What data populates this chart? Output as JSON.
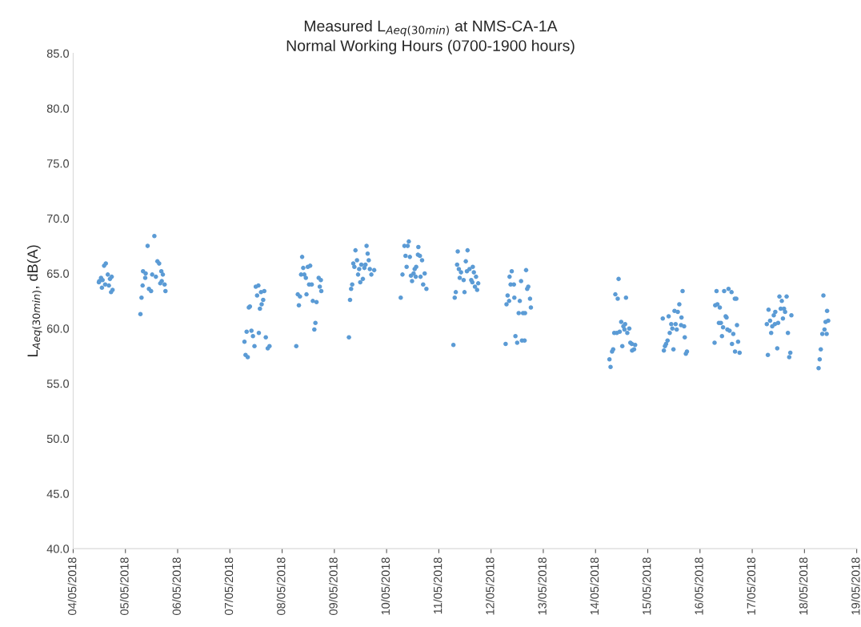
{
  "chart_data": {
    "type": "scatter",
    "title": "Measured L$_{Aeq(30min)}$ at NMS-CA-1A",
    "subtitle": "Normal Working Hours (0700-1900 hours)",
    "ylabel": "L$_{Aeq(30min)}$, dB(A)",
    "series": [
      {
        "color": "#5b9bd5",
        "x": [
          "2018-05-04T15:00",
          "2018-05-04T14:12",
          "2018-05-04T15:54",
          "2018-05-04T17:42",
          "2018-05-04T16:54",
          "2018-05-04T12:48",
          "2018-05-04T12:00",
          "2018-05-04T11:48",
          "2018-05-04T13:30",
          "2018-05-04T14:42",
          "2018-05-04T16:24",
          "2018-05-04T13:12",
          "2018-05-04T18:06",
          "2018-05-04T17:24",
          "2018-05-05T13:18",
          "2018-05-05T10:12",
          "2018-05-05T14:42",
          "2018-05-05T15:30",
          "2018-05-05T08:06",
          "2018-05-05T09:18",
          "2018-05-05T16:30",
          "2018-05-05T17:12",
          "2018-05-05T12:18",
          "2018-05-05T14:00",
          "2018-05-05T09:06",
          "2018-05-05T16:42",
          "2018-05-05T16:00",
          "2018-05-05T18:00",
          "2018-05-05T07:54",
          "2018-05-05T10:48",
          "2018-05-05T11:48",
          "2018-05-05T18:24",
          "2018-05-05T07:24",
          "2018-05-05T06:54",
          "2018-05-07T11:54",
          "2018-05-07T13:06",
          "2018-05-07T14:18",
          "2018-05-07T15:48",
          "2018-05-07T12:30",
          "2018-05-07T15:18",
          "2018-05-07T09:12",
          "2018-05-07T08:42",
          "2018-05-07T14:36",
          "2018-05-07T13:48",
          "2018-05-07T07:42",
          "2018-05-07T09:54",
          "2018-05-07T10:36",
          "2018-05-07T13:18",
          "2018-05-07T16:30",
          "2018-05-07T06:42",
          "2018-05-07T11:18",
          "2018-05-07T17:24",
          "2018-05-07T18:12",
          "2018-05-07T07:12",
          "2018-05-07T08:12",
          "2018-05-08T09:12",
          "2018-05-08T09:42",
          "2018-05-08T11:48",
          "2018-05-08T12:54",
          "2018-05-08T08:42",
          "2018-05-08T10:12",
          "2018-05-08T10:54",
          "2018-05-08T16:48",
          "2018-05-08T17:48",
          "2018-05-08T12:24",
          "2018-05-08T13:36",
          "2018-05-08T17:18",
          "2018-05-08T18:00",
          "2018-05-08T07:12",
          "2018-05-08T08:12",
          "2018-05-08T11:12",
          "2018-05-08T14:06",
          "2018-05-08T15:48",
          "2018-05-08T07:42",
          "2018-05-08T15:18",
          "2018-05-08T14:48",
          "2018-05-08T06:30",
          "2018-05-09T14:48",
          "2018-05-09T09:42",
          "2018-05-09T15:18",
          "2018-05-09T15:48",
          "2018-05-09T10:24",
          "2018-05-09T08:42",
          "2018-05-09T09:12",
          "2018-05-09T12:24",
          "2018-05-09T14:18",
          "2018-05-09T13:48",
          "2018-05-09T11:24",
          "2018-05-09T16:18",
          "2018-05-09T18:18",
          "2018-05-09T17:00",
          "2018-05-09T10:54",
          "2018-05-09T13:06",
          "2018-05-09T11:54",
          "2018-05-09T08:12",
          "2018-05-09T07:42",
          "2018-05-09T07:12",
          "2018-05-09T06:42",
          "2018-05-10T10:12",
          "2018-05-10T08:12",
          "2018-05-10T09:42",
          "2018-05-10T14:36",
          "2018-05-10T08:42",
          "2018-05-10T10:42",
          "2018-05-10T14:24",
          "2018-05-10T15:18",
          "2018-05-10T16:18",
          "2018-05-10T09:12",
          "2018-05-10T12:54",
          "2018-05-10T13:36",
          "2018-05-10T07:18",
          "2018-05-10T17:30",
          "2018-05-10T11:12",
          "2018-05-10T12:24",
          "2018-05-10T13:24",
          "2018-05-10T15:36",
          "2018-05-10T11:42",
          "2018-05-10T16:48",
          "2018-05-10T18:18",
          "2018-05-10T06:30",
          "2018-05-11T08:42",
          "2018-05-11T13:12",
          "2018-05-11T12:24",
          "2018-05-11T08:24",
          "2018-05-11T15:36",
          "2018-05-11T09:12",
          "2018-05-11T10:12",
          "2018-05-11T12:54",
          "2018-05-11T14:06",
          "2018-05-11T16:06",
          "2018-05-11T17:06",
          "2018-05-11T09:36",
          "2018-05-11T11:24",
          "2018-05-11T14:54",
          "2018-05-11T15:24",
          "2018-05-11T18:06",
          "2018-05-11T16:36",
          "2018-05-11T17:36",
          "2018-05-11T07:48",
          "2018-05-11T07:18",
          "2018-05-11T11:48",
          "2018-05-11T06:42",
          "2018-05-12T09:30",
          "2018-05-12T16:06",
          "2018-05-12T08:30",
          "2018-05-12T13:48",
          "2018-05-12T09:00",
          "2018-05-12T10:30",
          "2018-05-12T17:06",
          "2018-05-12T16:36",
          "2018-05-12T07:36",
          "2018-05-12T08:18",
          "2018-05-12T10:42",
          "2018-05-12T13:12",
          "2018-05-12T17:54",
          "2018-05-12T07:06",
          "2018-05-12T18:18",
          "2018-05-12T12:42",
          "2018-05-12T14:42",
          "2018-05-12T15:36",
          "2018-05-12T11:12",
          "2018-05-12T12:00",
          "2018-05-12T14:12",
          "2018-05-12T15:24",
          "2018-05-12T06:42",
          "2018-05-14T10:36",
          "2018-05-14T09:06",
          "2018-05-14T10:12",
          "2018-05-14T14:00",
          "2018-05-14T11:48",
          "2018-05-14T13:36",
          "2018-05-14T12:48",
          "2018-05-14T15:30",
          "2018-05-14T13:18",
          "2018-05-14T14:36",
          "2018-05-14T08:36",
          "2018-05-14T09:48",
          "2018-05-14T11:06",
          "2018-05-14T16:00",
          "2018-05-14T16:42",
          "2018-05-14T18:12",
          "2018-05-14T12:18",
          "2018-05-14T17:42",
          "2018-05-14T16:48",
          "2018-05-14T08:06",
          "2018-05-14T07:36",
          "2018-05-14T06:24",
          "2018-05-14T06:54",
          "2018-05-15T16:00",
          "2018-05-15T14:30",
          "2018-05-15T12:18",
          "2018-05-15T13:48",
          "2018-05-15T06:54",
          "2018-05-15T09:36",
          "2018-05-15T15:30",
          "2018-05-15T10:48",
          "2018-05-15T12:48",
          "2018-05-15T15:18",
          "2018-05-15T16:42",
          "2018-05-15T11:18",
          "2018-05-15T13:18",
          "2018-05-15T10:06",
          "2018-05-15T17:00",
          "2018-05-15T09:06",
          "2018-05-15T08:24",
          "2018-05-15T07:54",
          "2018-05-15T07:24",
          "2018-05-15T11:48",
          "2018-05-15T18:00",
          "2018-05-15T17:30",
          "2018-05-16T07:36",
          "2018-05-16T11:06",
          "2018-05-16T13:06",
          "2018-05-16T14:30",
          "2018-05-16T16:00",
          "2018-05-16T16:42",
          "2018-05-16T07:00",
          "2018-05-16T08:00",
          "2018-05-16T09:06",
          "2018-05-16T11:48",
          "2018-05-16T12:12",
          "2018-05-16T08:42",
          "2018-05-16T09:36",
          "2018-05-16T17:00",
          "2018-05-16T10:36",
          "2018-05-16T12:36",
          "2018-05-16T13:36",
          "2018-05-16T15:18",
          "2018-05-16T10:06",
          "2018-05-16T06:42",
          "2018-05-16T17:30",
          "2018-05-16T14:42",
          "2018-05-16T16:06",
          "2018-05-16T18:12",
          "2018-05-17T12:30",
          "2018-05-17T15:48",
          "2018-05-17T13:36",
          "2018-05-17T07:30",
          "2018-05-17T10:36",
          "2018-05-17T13:06",
          "2018-05-17T14:36",
          "2018-05-17T15:06",
          "2018-05-17T09:54",
          "2018-05-17T18:00",
          "2018-05-17T08:12",
          "2018-05-17T14:06",
          "2018-05-17T06:42",
          "2018-05-17T09:12",
          "2018-05-17T10:24",
          "2018-05-17T11:54",
          "2018-05-17T08:42",
          "2018-05-17T16:24",
          "2018-05-17T11:30",
          "2018-05-17T07:12",
          "2018-05-17T17:30",
          "2018-05-17T17:00",
          "2018-05-18T08:42",
          "2018-05-18T10:24",
          "2018-05-18T10:54",
          "2018-05-18T09:42",
          "2018-05-18T09:12",
          "2018-05-18T08:12",
          "2018-05-18T10:12",
          "2018-05-18T07:30",
          "2018-05-18T07:00",
          "2018-05-18T06:30"
        ],
        "values": [
          65.9,
          65.7,
          64.9,
          64.7,
          64.5,
          64.6,
          64.3,
          64.2,
          64.4,
          64.0,
          63.9,
          63.7,
          63.5,
          63.3,
          68.4,
          67.5,
          66.1,
          65.9,
          65.2,
          65.0,
          65.2,
          64.9,
          64.9,
          64.7,
          64.6,
          64.3,
          64.1,
          64.0,
          63.9,
          63.6,
          63.4,
          63.4,
          62.8,
          61.3,
          63.8,
          63.9,
          63.3,
          63.4,
          63.0,
          62.6,
          62.0,
          61.9,
          62.2,
          61.8,
          59.7,
          59.8,
          59.3,
          59.6,
          59.2,
          58.8,
          58.4,
          58.2,
          58.4,
          57.6,
          57.4,
          66.5,
          65.5,
          65.6,
          65.7,
          64.9,
          64.9,
          64.6,
          64.6,
          64.4,
          64.0,
          64.0,
          63.8,
          63.4,
          63.1,
          62.9,
          63.1,
          62.5,
          62.4,
          62.1,
          60.5,
          59.9,
          58.4,
          67.5,
          67.1,
          66.8,
          66.2,
          66.2,
          65.9,
          65.6,
          65.8,
          65.8,
          65.5,
          65.4,
          65.4,
          65.3,
          64.9,
          64.9,
          64.5,
          64.2,
          64.0,
          63.6,
          62.6,
          59.2,
          67.9,
          67.5,
          67.5,
          67.4,
          66.6,
          66.5,
          66.7,
          66.6,
          66.2,
          65.6,
          65.4,
          65.6,
          64.9,
          65.0,
          64.8,
          65.0,
          64.7,
          64.7,
          64.3,
          64.0,
          63.6,
          62.8,
          67.0,
          67.1,
          66.1,
          65.8,
          65.6,
          65.4,
          65.1,
          65.2,
          65.4,
          65.1,
          64.7,
          64.6,
          64.4,
          64.4,
          64.2,
          64.1,
          63.8,
          63.5,
          63.3,
          62.8,
          63.3,
          58.5,
          65.2,
          65.3,
          64.7,
          64.3,
          64.0,
          64.0,
          63.8,
          63.6,
          63.0,
          62.5,
          62.8,
          62.5,
          62.7,
          62.2,
          61.9,
          61.4,
          61.4,
          61.4,
          59.3,
          58.7,
          58.9,
          58.9,
          58.6,
          64.5,
          63.1,
          62.7,
          62.8,
          60.6,
          60.4,
          60.2,
          60.0,
          59.9,
          59.6,
          59.6,
          59.6,
          59.7,
          58.7,
          58.6,
          58.5,
          58.4,
          58.1,
          58.0,
          58.1,
          57.9,
          57.2,
          56.5,
          63.4,
          62.2,
          61.6,
          61.5,
          60.9,
          61.1,
          61.0,
          60.4,
          60.4,
          60.3,
          60.2,
          60.0,
          59.9,
          59.6,
          59.2,
          58.9,
          58.6,
          58.4,
          58.0,
          58.1,
          57.9,
          57.7,
          63.4,
          63.4,
          63.6,
          63.3,
          62.7,
          62.7,
          62.1,
          62.2,
          61.9,
          61.1,
          61.0,
          60.5,
          60.5,
          60.3,
          60.1,
          59.9,
          59.8,
          59.5,
          59.3,
          58.7,
          58.8,
          58.6,
          57.9,
          57.8,
          62.9,
          62.9,
          62.5,
          61.7,
          61.5,
          61.8,
          61.8,
          61.5,
          61.2,
          61.2,
          60.7,
          60.9,
          60.4,
          60.2,
          60.4,
          60.5,
          59.6,
          59.6,
          58.2,
          57.6,
          57.8,
          57.4,
          63.0,
          61.6,
          60.7,
          60.6,
          59.9,
          59.5,
          59.5,
          58.1,
          57.2,
          56.4
        ]
      }
    ],
    "xlim": [
      "2018-05-04",
      "2018-05-19"
    ],
    "xticks": [
      {
        "value": "2018-05-04",
        "label": "04/05/2018"
      },
      {
        "value": "2018-05-05",
        "label": "05/05/2018"
      },
      {
        "value": "2018-05-06",
        "label": "06/05/2018"
      },
      {
        "value": "2018-05-07",
        "label": "07/05/2018"
      },
      {
        "value": "2018-05-08",
        "label": "08/05/2018"
      },
      {
        "value": "2018-05-09",
        "label": "09/05/2018"
      },
      {
        "value": "2018-05-10",
        "label": "10/05/2018"
      },
      {
        "value": "2018-05-11",
        "label": "11/05/2018"
      },
      {
        "value": "2018-05-12",
        "label": "12/05/2018"
      },
      {
        "value": "2018-05-13",
        "label": "13/05/2018"
      },
      {
        "value": "2018-05-14",
        "label": "14/05/2018"
      },
      {
        "value": "2018-05-15",
        "label": "15/05/2018"
      },
      {
        "value": "2018-05-16",
        "label": "16/05/2018"
      },
      {
        "value": "2018-05-17",
        "label": "17/05/2018"
      },
      {
        "value": "2018-05-18",
        "label": "18/05/2018"
      },
      {
        "value": "2018-05-19",
        "label": "19/05/2018"
      }
    ],
    "ylim": [
      40,
      85
    ],
    "yticks": [
      {
        "value": 40,
        "label": "40.0"
      },
      {
        "value": 45,
        "label": "45.0"
      },
      {
        "value": 50,
        "label": "50.0"
      },
      {
        "value": 55,
        "label": "55.0"
      },
      {
        "value": 60,
        "label": "60.0"
      },
      {
        "value": 65,
        "label": "65.0"
      },
      {
        "value": 70,
        "label": "70.0"
      },
      {
        "value": 75,
        "label": "75.0"
      },
      {
        "value": 80,
        "label": "80.0"
      },
      {
        "value": 85,
        "label": "85.0"
      }
    ],
    "marker": "circle"
  }
}
